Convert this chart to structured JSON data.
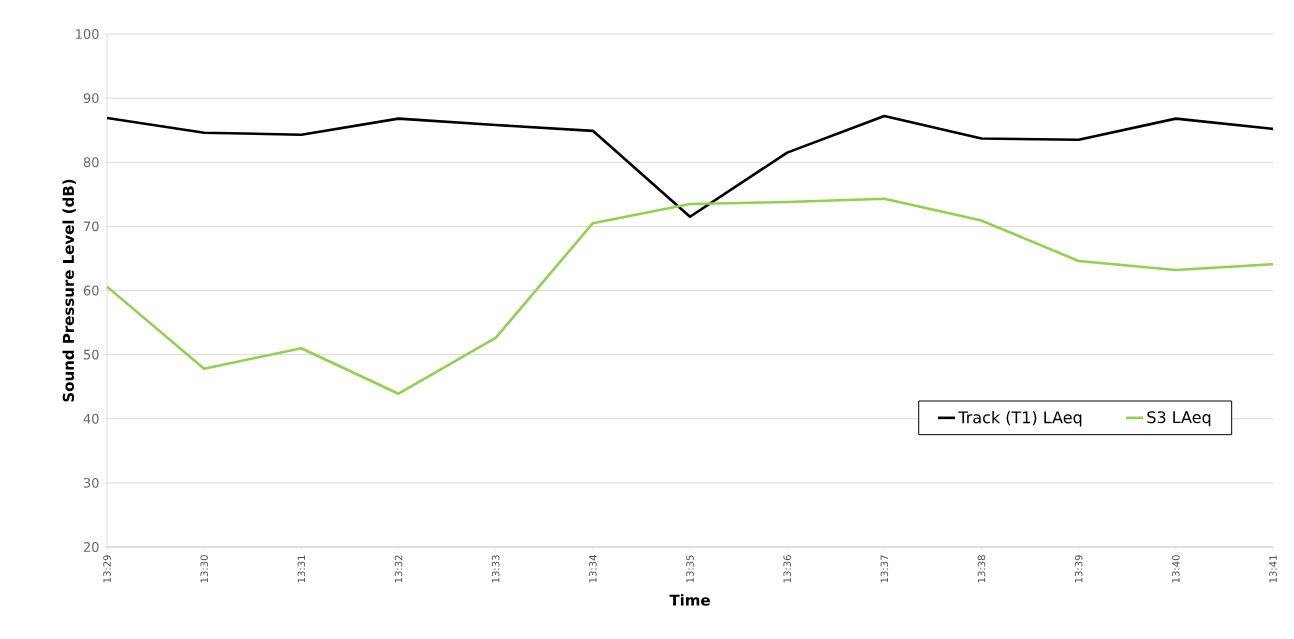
{
  "chart_data": {
    "type": "line",
    "xlabel": "Time",
    "ylabel": "Sound Pressure Level (dB)",
    "categories": [
      "13:29",
      "13:30",
      "13:31",
      "13:32",
      "13:33",
      "13:34",
      "13:35",
      "13:36",
      "13:37",
      "13:38",
      "13:39",
      "13:40",
      "13:41"
    ],
    "series": [
      {
        "name": "Track (T1) LAeq",
        "color": "#000000",
        "values": [
          86.9,
          84.6,
          84.3,
          86.8,
          85.8,
          84.9,
          71.5,
          81.5,
          87.2,
          83.7,
          83.5,
          86.8,
          85.2
        ]
      },
      {
        "name": "S3 LAeq",
        "color": "#92d050",
        "values": [
          60.6,
          47.8,
          51.0,
          43.9,
          52.6,
          70.5,
          73.5,
          73.8,
          74.3,
          70.9,
          64.6,
          63.2,
          64.1
        ]
      }
    ],
    "ylim": [
      20,
      100
    ],
    "yticks": [
      20,
      30,
      40,
      50,
      60,
      70,
      80,
      90,
      100
    ],
    "grid": "y",
    "legend": "bottom right",
    "marker": "none",
    "line_style": "solid"
  }
}
